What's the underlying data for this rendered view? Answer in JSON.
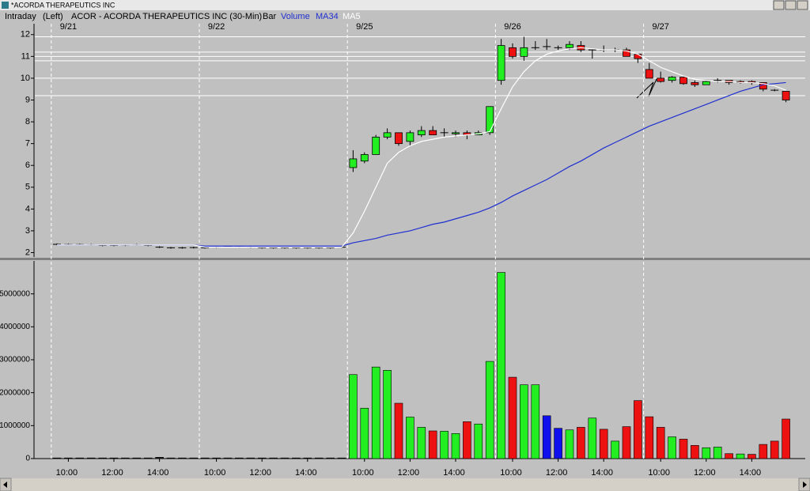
{
  "window": {
    "title": "*ACORDA THERAPEUTICS INC"
  },
  "header": {
    "mode": "Intraday",
    "side": "(Left)",
    "symbol": "ACOR - ACORDA THERAPEUTICS INC (30-Min)",
    "style": "Bar"
  },
  "chart_data": [
    {
      "type": "candlestick",
      "sessions": [
        {
          "label": "9/21",
          "start": 0
        },
        {
          "label": "9/22",
          "start": 13
        },
        {
          "label": "9/25",
          "start": 26
        },
        {
          "label": "9/26",
          "start": 39
        },
        {
          "label": "9/27",
          "start": 52
        }
      ],
      "open": [
        2.38,
        2.37,
        2.37,
        2.36,
        2.33,
        2.33,
        2.34,
        2.36,
        2.33,
        2.25,
        2.22,
        2.22,
        2.23,
        2.22,
        2.25,
        2.27,
        2.26,
        2.25,
        2.22,
        2.22,
        2.22,
        2.22,
        2.22,
        2.22,
        2.22,
        2.25,
        5.9,
        6.2,
        6.5,
        7.3,
        7.5,
        7.1,
        7.4,
        7.6,
        7.5,
        7.45,
        7.5,
        7.4,
        7.5,
        9.9,
        11.4,
        11.0,
        11.4,
        11.45,
        11.4,
        11.4,
        11.5,
        11.3,
        11.3,
        11.3,
        11.3,
        11.1,
        10.4,
        10.0,
        9.9,
        10.05,
        9.8,
        9.7,
        9.9,
        9.9,
        9.85,
        9.85,
        9.8,
        9.45,
        9.4
      ],
      "high": [
        2.42,
        2.41,
        2.41,
        2.4,
        2.37,
        2.37,
        2.38,
        2.4,
        2.37,
        2.29,
        2.26,
        2.26,
        2.27,
        2.26,
        2.29,
        2.31,
        2.3,
        2.29,
        2.26,
        2.26,
        2.26,
        2.26,
        2.26,
        2.26,
        2.26,
        2.29,
        6.7,
        6.6,
        7.4,
        7.7,
        7.5,
        7.6,
        7.8,
        7.8,
        7.7,
        7.6,
        7.6,
        7.6,
        8.7,
        11.8,
        11.6,
        11.9,
        11.7,
        11.8,
        11.5,
        11.7,
        11.7,
        11.3,
        11.5,
        11.4,
        11.4,
        11.1,
        10.7,
        10.3,
        10.1,
        10.1,
        9.9,
        9.9,
        10.0,
        9.9,
        9.9,
        9.9,
        9.8,
        9.5,
        9.4
      ],
      "low": [
        2.34,
        2.33,
        2.33,
        2.32,
        2.29,
        2.29,
        2.3,
        2.32,
        2.29,
        2.21,
        2.18,
        2.18,
        2.19,
        2.18,
        2.21,
        2.23,
        2.22,
        2.21,
        2.18,
        2.18,
        2.18,
        2.18,
        2.18,
        2.18,
        2.18,
        2.21,
        5.7,
        6.1,
        6.5,
        7.2,
        6.9,
        6.9,
        7.3,
        7.4,
        7.3,
        7.3,
        7.2,
        7.4,
        7.4,
        9.7,
        10.9,
        10.8,
        11.3,
        11.3,
        11.3,
        11.3,
        11.2,
        10.9,
        11.2,
        11.2,
        11.0,
        10.7,
        10.0,
        9.8,
        9.8,
        9.7,
        9.6,
        9.7,
        9.8,
        9.7,
        9.75,
        9.7,
        9.4,
        9.4,
        8.9
      ],
      "close": [
        2.38,
        2.37,
        2.37,
        2.36,
        2.33,
        2.33,
        2.34,
        2.36,
        2.33,
        2.25,
        2.22,
        2.22,
        2.23,
        2.22,
        2.25,
        2.27,
        2.26,
        2.25,
        2.22,
        2.22,
        2.22,
        2.22,
        2.22,
        2.22,
        2.22,
        2.25,
        6.3,
        6.5,
        7.3,
        7.5,
        7.0,
        7.5,
        7.6,
        7.4,
        7.5,
        7.5,
        7.4,
        7.5,
        8.7,
        11.5,
        11.0,
        11.4,
        11.4,
        11.45,
        11.4,
        11.55,
        11.3,
        11.3,
        11.3,
        11.3,
        11.0,
        10.9,
        10.0,
        9.85,
        10.05,
        9.75,
        9.7,
        9.85,
        9.9,
        9.8,
        9.8,
        9.8,
        9.5,
        9.45,
        9.0
      ],
      "up_color": "#22ee22",
      "down_color": "#ee1111",
      "series": [
        {
          "name": "MA34",
          "color": "#1f2fd0",
          "values": [
            2.35,
            2.35,
            2.35,
            2.35,
            2.35,
            2.35,
            2.35,
            2.35,
            2.35,
            2.35,
            2.35,
            2.35,
            2.35,
            2.3,
            2.3,
            2.3,
            2.3,
            2.3,
            2.3,
            2.3,
            2.3,
            2.3,
            2.3,
            2.3,
            2.3,
            2.3,
            2.45,
            2.55,
            2.65,
            2.8,
            2.9,
            3.0,
            3.15,
            3.3,
            3.4,
            3.55,
            3.7,
            3.85,
            4.05,
            4.3,
            4.6,
            4.85,
            5.1,
            5.35,
            5.65,
            5.95,
            6.2,
            6.5,
            6.8,
            7.05,
            7.3,
            7.55,
            7.8,
            8.0,
            8.2,
            8.4,
            8.6,
            8.8,
            9.0,
            9.2,
            9.4,
            9.55,
            9.7,
            9.75,
            9.8
          ]
        },
        {
          "name": "MA5",
          "color": "#ffffff",
          "values": [
            2.35,
            2.35,
            2.35,
            2.35,
            2.35,
            2.35,
            2.35,
            2.35,
            2.35,
            2.35,
            2.35,
            2.35,
            2.35,
            2.25,
            2.25,
            2.25,
            2.25,
            2.25,
            2.25,
            2.25,
            2.25,
            2.25,
            2.25,
            2.25,
            2.25,
            2.25,
            2.9,
            3.9,
            5.0,
            6.1,
            6.6,
            6.9,
            7.1,
            7.2,
            7.3,
            7.35,
            7.4,
            7.45,
            7.55,
            8.6,
            9.6,
            10.3,
            10.8,
            11.1,
            11.25,
            11.35,
            11.4,
            11.35,
            11.3,
            11.3,
            11.25,
            11.1,
            10.8,
            10.5,
            10.3,
            10.1,
            9.95,
            9.9,
            9.85,
            9.85,
            9.8,
            9.8,
            9.75,
            9.65,
            9.45
          ]
        }
      ],
      "hlines": [
        11.9,
        11.2,
        11.0,
        10.8,
        10.0,
        9.2
      ],
      "ylim": [
        1.8,
        12.5
      ],
      "yticks": [
        2,
        3,
        4,
        5,
        6,
        7,
        8,
        9,
        10,
        11,
        12
      ]
    },
    {
      "type": "bar",
      "title": "Volume",
      "categories": [
        null,
        "10:00",
        null,
        null,
        null,
        "12:00",
        null,
        null,
        null,
        "14:00",
        null,
        null,
        null,
        null,
        "10:00",
        null,
        null,
        null,
        "12:00",
        null,
        null,
        null,
        "14:00",
        null,
        null,
        null,
        null,
        "10:00",
        null,
        null,
        null,
        "12:00",
        null,
        null,
        null,
        "14:00",
        null,
        null,
        null,
        null,
        "10:00",
        null,
        null,
        null,
        "12:00",
        null,
        null,
        null,
        "14:00",
        null,
        null,
        null,
        null,
        "10:00",
        null,
        null,
        null,
        "12:00",
        null,
        null,
        null,
        "14:00",
        null,
        null,
        null
      ],
      "values": [
        20000,
        20000,
        20000,
        20000,
        20000,
        20000,
        20000,
        20000,
        20000,
        40000,
        20000,
        20000,
        20000,
        20000,
        20000,
        20000,
        20000,
        20000,
        20000,
        20000,
        20000,
        20000,
        20000,
        20000,
        20000,
        20000,
        2550000,
        1530000,
        2780000,
        2680000,
        1680000,
        1260000,
        950000,
        840000,
        830000,
        760000,
        1120000,
        1050000,
        2950000,
        5650000,
        2470000,
        2240000,
        2240000,
        1300000,
        920000,
        870000,
        950000,
        1230000,
        890000,
        530000,
        970000,
        1760000,
        1270000,
        950000,
        660000,
        590000,
        400000,
        330000,
        350000,
        150000,
        140000,
        130000,
        430000,
        530000,
        1200000
      ],
      "colors": [
        "#202020",
        "#202020",
        "#202020",
        "#202020",
        "#202020",
        "#202020",
        "#202020",
        "#202020",
        "#202020",
        "#202020",
        "#202020",
        "#202020",
        "#202020",
        "#202020",
        "#202020",
        "#202020",
        "#202020",
        "#202020",
        "#202020",
        "#202020",
        "#202020",
        "#202020",
        "#202020",
        "#202020",
        "#202020",
        "#202020",
        "#22ee22",
        "#22ee22",
        "#22ee22",
        "#22ee22",
        "#ee1111",
        "#22ee22",
        "#22ee22",
        "#ee1111",
        "#22ee22",
        "#22ee22",
        "#ee1111",
        "#22ee22",
        "#22ee22",
        "#22ee22",
        "#ee1111",
        "#22ee22",
        "#22ee22",
        "#1010ee",
        "#1010ee",
        "#22ee22",
        "#ee1111",
        "#22ee22",
        "#ee1111",
        "#22ee22",
        "#ee1111",
        "#ee1111",
        "#ee1111",
        "#ee1111",
        "#22ee22",
        "#ee1111",
        "#ee1111",
        "#22ee22",
        "#22ee22",
        "#ee1111",
        "#22ee22",
        "#ee1111",
        "#ee1111",
        "#ee1111",
        "#ee1111"
      ],
      "ylim": [
        0,
        6000000
      ],
      "yticks": [
        0,
        1000000,
        2000000,
        3000000,
        4000000,
        5000000
      ]
    }
  ]
}
